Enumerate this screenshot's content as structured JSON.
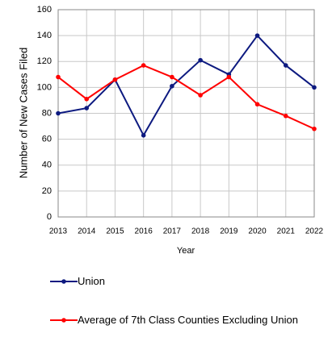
{
  "chart_data": {
    "type": "line",
    "x_label": "Year",
    "y_label": "Number of New Cases Filed",
    "categories": [
      "2013",
      "2014",
      "2015",
      "2016",
      "2017",
      "2018",
      "2019",
      "2020",
      "2021",
      "2022"
    ],
    "series": [
      {
        "name": "Union",
        "color": "#0d1a80",
        "values": [
          80,
          84,
          106,
          63,
          101,
          121,
          110,
          140,
          117,
          100
        ]
      },
      {
        "name": "Average of 7th Class Counties Excluding Union",
        "color": "#ff0000",
        "values": [
          108,
          91,
          106,
          117,
          108,
          94,
          108,
          87,
          78,
          68
        ]
      }
    ],
    "ylim": [
      0,
      160
    ],
    "yticks": [
      0,
      20,
      40,
      60,
      80,
      100,
      120,
      140,
      160
    ],
    "grid": true
  }
}
